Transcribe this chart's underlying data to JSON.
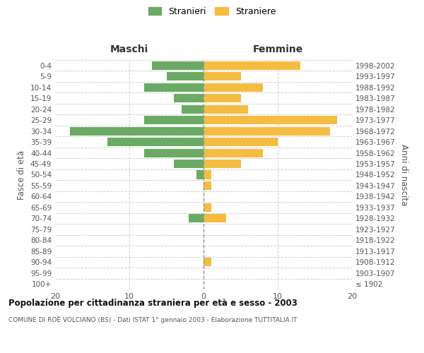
{
  "age_groups": [
    "100+",
    "95-99",
    "90-94",
    "85-89",
    "80-84",
    "75-79",
    "70-74",
    "65-69",
    "60-64",
    "55-59",
    "50-54",
    "45-49",
    "40-44",
    "35-39",
    "30-34",
    "25-29",
    "20-24",
    "15-19",
    "10-14",
    "5-9",
    "0-4"
  ],
  "birth_years": [
    "≤ 1902",
    "1903-1907",
    "1908-1912",
    "1913-1917",
    "1918-1922",
    "1923-1927",
    "1928-1932",
    "1933-1937",
    "1938-1942",
    "1943-1947",
    "1948-1952",
    "1953-1957",
    "1958-1962",
    "1963-1967",
    "1968-1972",
    "1973-1977",
    "1978-1982",
    "1983-1987",
    "1988-1992",
    "1993-1997",
    "1998-2002"
  ],
  "maschi": [
    0,
    0,
    0,
    0,
    0,
    0,
    2,
    0,
    0,
    0,
    1,
    4,
    8,
    13,
    18,
    8,
    3,
    4,
    8,
    5,
    7
  ],
  "femmine": [
    0,
    0,
    1,
    0,
    0,
    0,
    3,
    1,
    0,
    1,
    1,
    5,
    8,
    10,
    17,
    18,
    6,
    5,
    8,
    5,
    13
  ],
  "color_maschi": "#6aaa64",
  "color_femmine": "#f5bc42",
  "title": "Popolazione per cittadinanza straniera per età e sesso - 2003",
  "subtitle": "COMUNE DI ROÈ VOLCIANO (BS) - Dati ISTAT 1° gennaio 2003 - Elaborazione TUTTITALIA.IT",
  "xlabel_left": "Maschi",
  "xlabel_right": "Femmine",
  "ylabel_left": "Fasce di età",
  "ylabel_right": "Anni di nascita",
  "legend_stranieri": "Stranieri",
  "legend_straniere": "Straniere",
  "xlim": 20,
  "background_color": "#ffffff",
  "grid_color": "#d0d0d0"
}
